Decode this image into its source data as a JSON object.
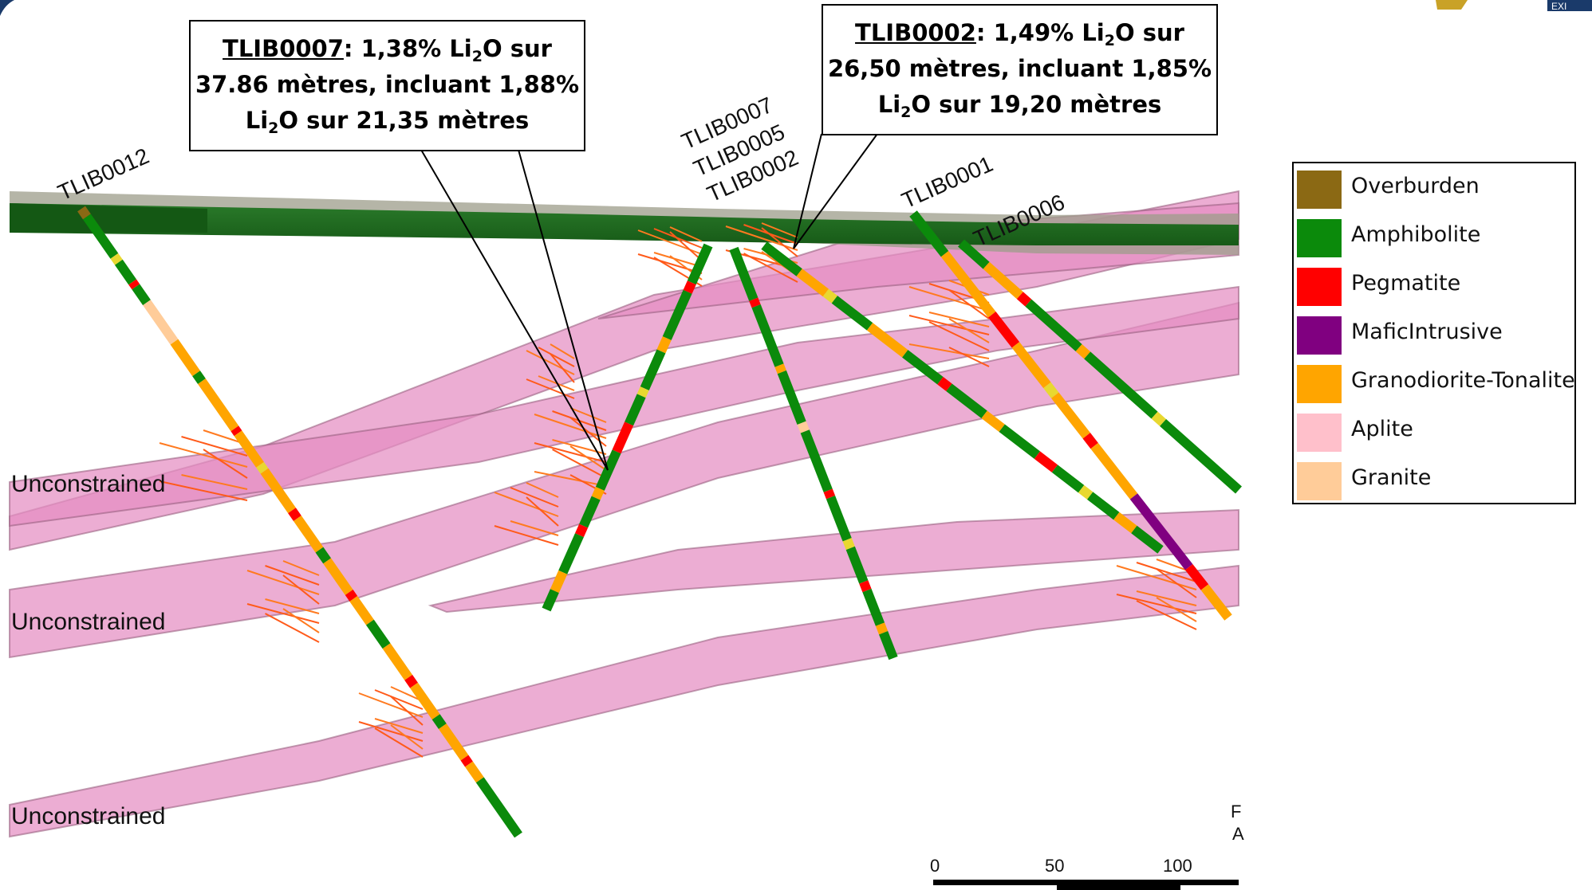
{
  "callouts": {
    "left": {
      "hole": "TLIB0007",
      "line1_rest": ": 1,38% Li",
      "line1_sub": "2",
      "line1_end": "O sur",
      "line2": "37.86 mètres, incluant 1,88%",
      "line3_pre": "Li",
      "line3_sub": "2",
      "line3_end": "O sur 21,35 mètres"
    },
    "right": {
      "hole": "TLIB0002",
      "line1_rest": ": 1,49% Li",
      "line1_sub": "2",
      "line1_end": "O sur",
      "line2": "26,50 mètres, incluant 1,85%",
      "line3_pre": "Li",
      "line3_sub": "2",
      "line3_end": "O sur 19,20 mètres"
    }
  },
  "hole_labels": [
    "TLIB0012",
    "TLIB0007",
    "TLIB0005",
    "TLIB0002",
    "TLIB0001",
    "TLIB0006"
  ],
  "zone_labels": [
    "Unconstrained",
    "Unconstrained",
    "Unconstrained"
  ],
  "scale_bar": {
    "ticks": [
      "0",
      "50",
      "100"
    ]
  },
  "edge_text": {
    "char1": "F",
    "char2": "A",
    "logo_fragment": "EXI"
  },
  "legend": [
    {
      "label": "Overburden",
      "color": "#8B6914"
    },
    {
      "label": "Amphibolite",
      "color": "#0B8A0B"
    },
    {
      "label": "Pegmatite",
      "color": "#FF0000"
    },
    {
      "label": "MaficIntrusive",
      "color": "#800080"
    },
    {
      "label": "Granodiorite-Tonalite",
      "color": "#FFA500"
    },
    {
      "label": "Aplite",
      "color": "#FFC0CB"
    },
    {
      "label": "Granite",
      "color": "#FFCC99"
    }
  ],
  "colors": {
    "surface_top": "#1F6B1F",
    "surface_grey": "#9A9A88",
    "dyke_pink": "#E888C0",
    "dyke_edge": "#B07090"
  }
}
